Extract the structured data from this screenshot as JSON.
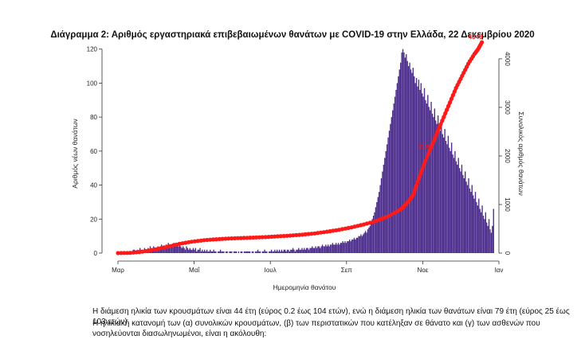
{
  "chart_data": {
    "type": "bar",
    "title": "Διάγραμμα 2: Αριθμός εργαστηριακά επιβεβαιωμένων θανάτων με COVID-19 στην Ελλάδα, 22 Δεκεμβρίου 2020",
    "xlabel": "Ημερομηνία θανάτου",
    "ylabel": "Αριθμός νέων θανάτων",
    "y2label": "Συνολικός αριθμός θανάτων",
    "x_ticks": [
      "Μαρ",
      "Μαΐ",
      "Ιουλ",
      "Σεπ",
      "Νοε",
      "Ιαν"
    ],
    "x_range_days": [
      0,
      306
    ],
    "ylim": [
      0,
      125
    ],
    "y_ticks": [
      0,
      20,
      40,
      60,
      80,
      100,
      120
    ],
    "y2lim": [
      0,
      4375
    ],
    "y2_ticks": [
      0,
      1000,
      2000,
      3000,
      4000
    ],
    "colors": {
      "bars": "#4b2c8c",
      "cumulative": "#ff1a1a",
      "cumulative_label": "#ff1a1a"
    },
    "series": [
      {
        "kind": "bars",
        "values": [
          0,
          0,
          0,
          0,
          0,
          0,
          0,
          0,
          1,
          1,
          0,
          1,
          1,
          2,
          2,
          1,
          1,
          2,
          1,
          3,
          2,
          1,
          2,
          3,
          1,
          2,
          3,
          2,
          4,
          2,
          3,
          4,
          2,
          3,
          2,
          4,
          3,
          2,
          5,
          3,
          4,
          3,
          5,
          4,
          6,
          3,
          4,
          5,
          4,
          6,
          4,
          5,
          6,
          4,
          5,
          4,
          3,
          4,
          3,
          2,
          4,
          3,
          2,
          3,
          2,
          2,
          3,
          2,
          3,
          1,
          2,
          2,
          3,
          1,
          2,
          1,
          2,
          1,
          2,
          1,
          1,
          2,
          1,
          1,
          2,
          1,
          1,
          0,
          1,
          1,
          2,
          1,
          1,
          1,
          0,
          1,
          1,
          0,
          1,
          1,
          1,
          0,
          1,
          1,
          1,
          0,
          1,
          0,
          1,
          1,
          0,
          1,
          1,
          1,
          1,
          1,
          1,
          0,
          1,
          1,
          0,
          1,
          1,
          2,
          1,
          1,
          0,
          1,
          1,
          2,
          1,
          1,
          0,
          1,
          1,
          2,
          1,
          1,
          2,
          1,
          2,
          1,
          2,
          1,
          2,
          1,
          2,
          2,
          1,
          2,
          2,
          1,
          2,
          2,
          3,
          2,
          1,
          2,
          2,
          3,
          2,
          2,
          3,
          2,
          3,
          2,
          3,
          3,
          2,
          3,
          3,
          4,
          3,
          3,
          4,
          3,
          4,
          4,
          3,
          4,
          5,
          4,
          4,
          5,
          4,
          5,
          4,
          5,
          5,
          6,
          5,
          5,
          6,
          5,
          6,
          5,
          6,
          6,
          7,
          6,
          7,
          6,
          7,
          7,
          8,
          7,
          8,
          8,
          9,
          8,
          9,
          9,
          10,
          10,
          11,
          10,
          11,
          12,
          13,
          12,
          14,
          15,
          16,
          18,
          20,
          22,
          24,
          27,
          30,
          33,
          36,
          40,
          44,
          48,
          52,
          56,
          60,
          64,
          68,
          72,
          76,
          80,
          84,
          88,
          92,
          96,
          100,
          104,
          108,
          112,
          118,
          120,
          118,
          115,
          117,
          113,
          110,
          112,
          108,
          106,
          109,
          104,
          100,
          103,
          98,
          102,
          96,
          100,
          94,
          92,
          97,
          90,
          88,
          93,
          86,
          84,
          89,
          82,
          80,
          85,
          78,
          76,
          81,
          74,
          72,
          77,
          70,
          68,
          73,
          66,
          64,
          69,
          62,
          60,
          65,
          58,
          56,
          60,
          54,
          52,
          56,
          50,
          48,
          52,
          46,
          44,
          48,
          42,
          40,
          44,
          38,
          36,
          40,
          34,
          32,
          36,
          30,
          28,
          32,
          26,
          24,
          28,
          22,
          20,
          24,
          18,
          16,
          20,
          14,
          12,
          16,
          26
        ]
      },
      {
        "kind": "cumulative",
        "points": [
          [
            0,
            0
          ],
          [
            10,
            5
          ],
          [
            20,
            30
          ],
          [
            30,
            75
          ],
          [
            40,
            130
          ],
          [
            50,
            190
          ],
          [
            60,
            235
          ],
          [
            70,
            265
          ],
          [
            80,
            285
          ],
          [
            90,
            300
          ],
          [
            100,
            310
          ],
          [
            110,
            320
          ],
          [
            120,
            330
          ],
          [
            130,
            345
          ],
          [
            140,
            360
          ],
          [
            150,
            380
          ],
          [
            160,
            405
          ],
          [
            170,
            440
          ],
          [
            180,
            480
          ],
          [
            190,
            530
          ],
          [
            200,
            590
          ],
          [
            210,
            660
          ],
          [
            220,
            760
          ],
          [
            230,
            900
          ],
          [
            236,
            1050
          ],
          [
            240,
            1200
          ],
          [
            245,
            1550
          ],
          [
            250,
            1900
          ],
          [
            255,
            2190
          ],
          [
            260,
            2500
          ],
          [
            265,
            2800
          ],
          [
            270,
            3100
          ],
          [
            275,
            3400
          ],
          [
            280,
            3650
          ],
          [
            285,
            3900
          ],
          [
            290,
            4100
          ],
          [
            293,
            4200
          ],
          [
            296,
            4340
          ]
        ],
        "end_label": "4340",
        "mid_label": "2190"
      }
    ]
  },
  "notes": {
    "line1": "Η διάμεση ηλικία των κρουσμάτων είναι 44 έτη (εύρος 0.2 έως 104 ετών), ενώ η διάμεση ηλικία των θανάτων είναι 79 έτη (εύρος 25 έως 103 ετών).",
    "line2": "Η ηλικιακή κατανομή των (α) συνολικών κρουσμάτων, (β) των περιστατικών που κατέληξαν σε θάνατο και (γ) των ασθενών που νοσηλεύονται διασωληνωμένοι, είναι η ακόλουθη:"
  }
}
